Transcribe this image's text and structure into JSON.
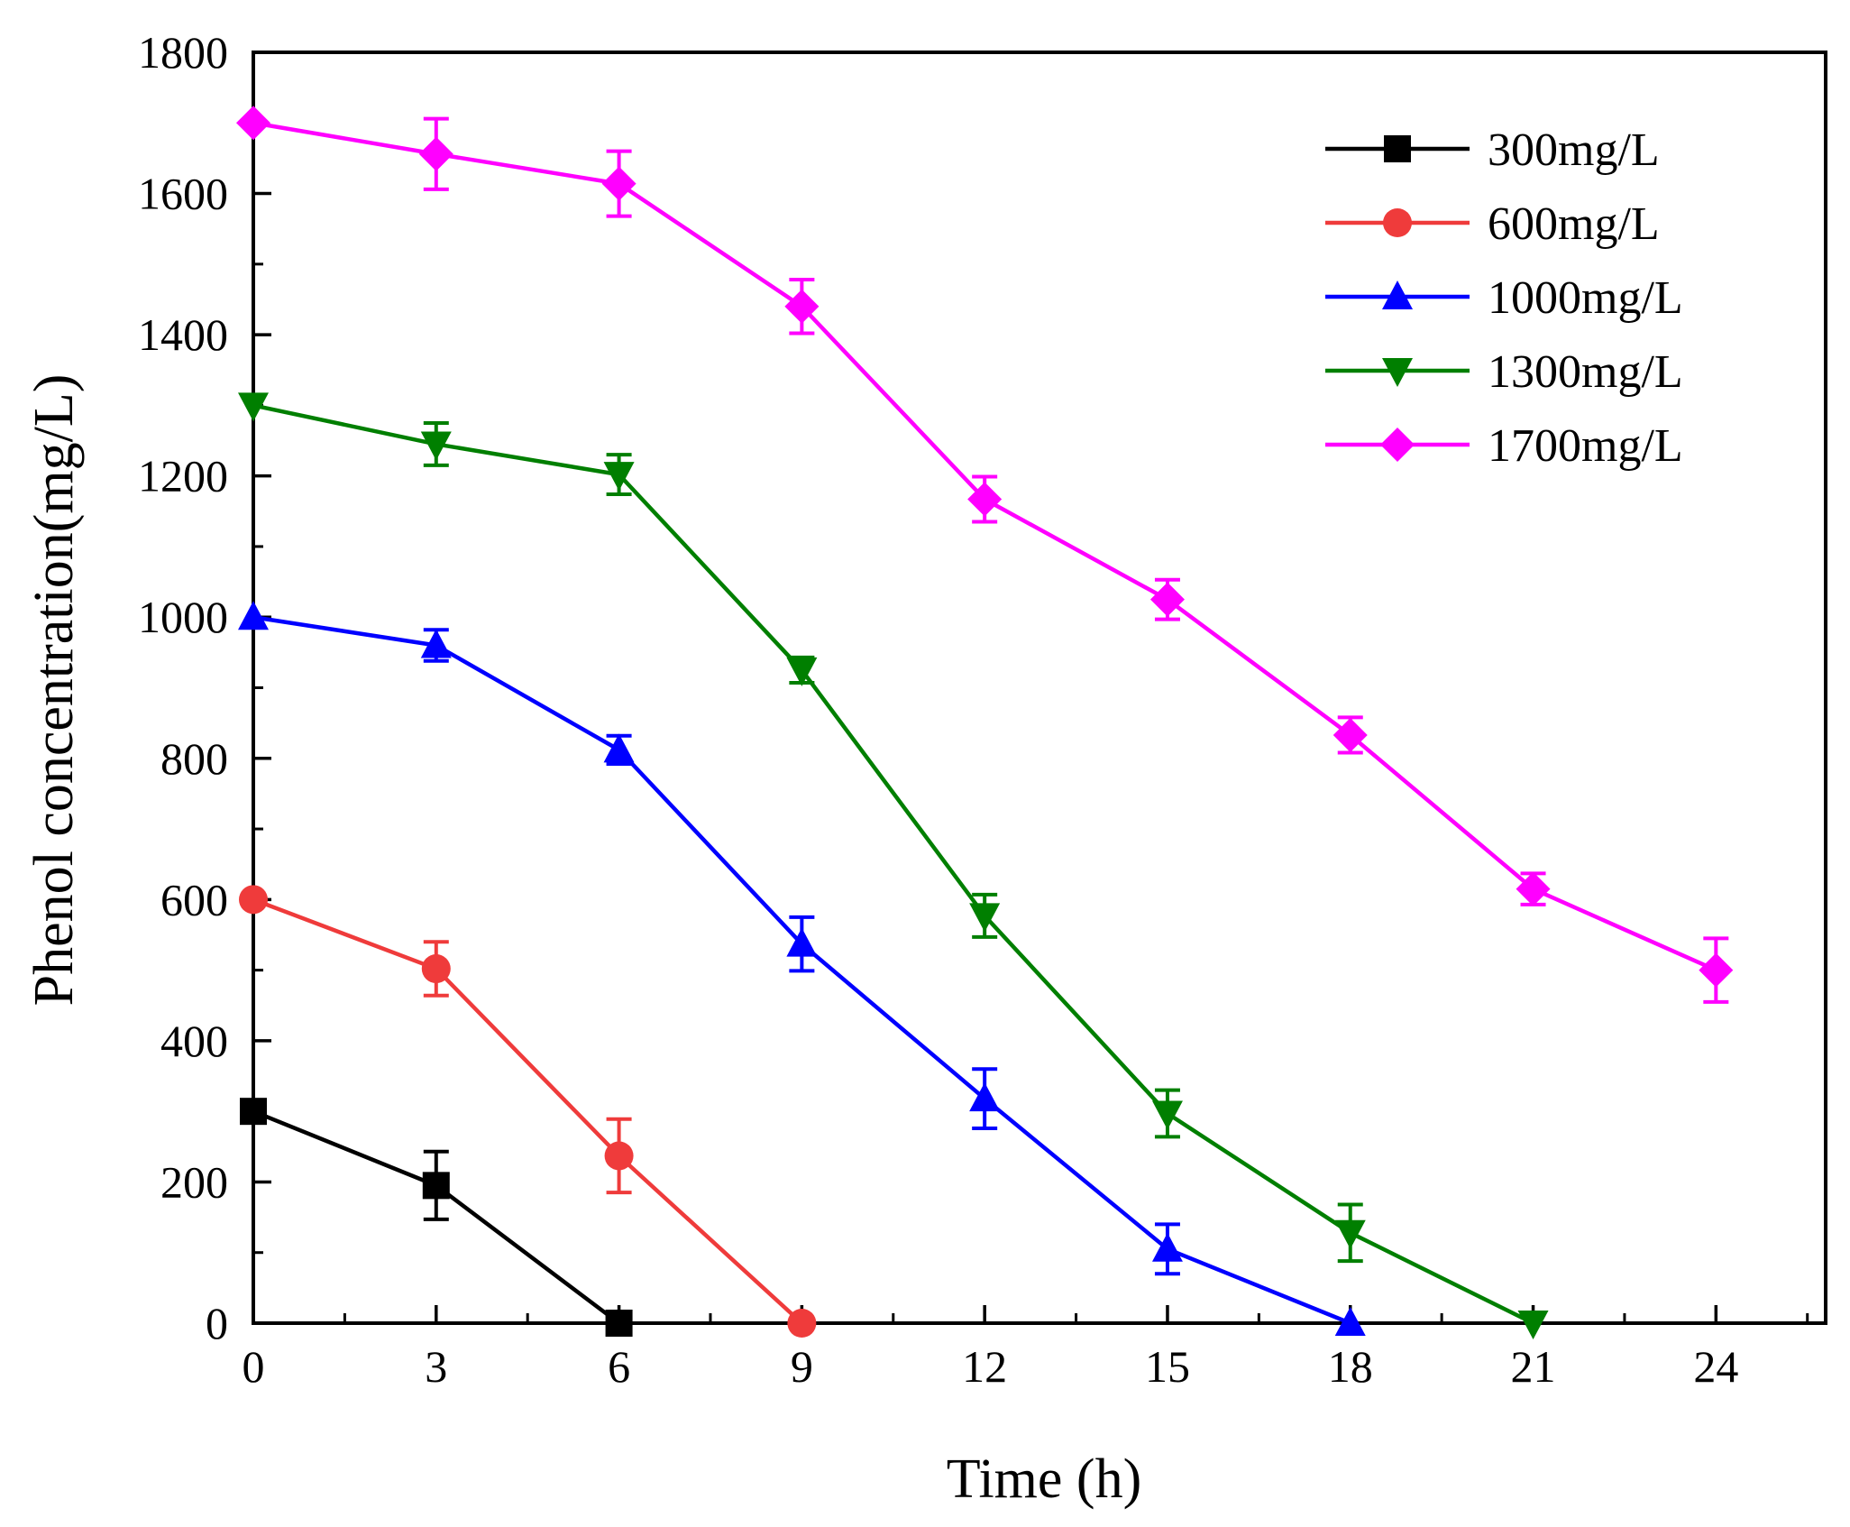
{
  "chart_data": {
    "type": "line",
    "title": "",
    "xlabel": "Time (h)",
    "ylabel": "Phenol concentration(mg/L)",
    "xlim": [
      0,
      25.8
    ],
    "ylim": [
      0,
      1800
    ],
    "xticks": [
      0,
      3,
      6,
      9,
      12,
      15,
      18,
      21,
      24
    ],
    "xtick_labels": [
      "0",
      "3",
      "6",
      "9",
      "12",
      "15",
      "18",
      "21",
      "24"
    ],
    "xminor_step": 1.5,
    "yticks": [
      0,
      200,
      400,
      600,
      800,
      1000,
      1200,
      1400,
      1600,
      1800
    ],
    "ytick_labels": [
      "0",
      "200",
      "400",
      "600",
      "800",
      "1000",
      "1200",
      "1400",
      "1600",
      "1800"
    ],
    "yminor_step": 100,
    "grid": false,
    "legend_position": "top-right",
    "series": [
      {
        "name": "300mg/L",
        "color": "#000000",
        "marker": "square",
        "x": [
          0,
          3,
          6
        ],
        "y": [
          300,
          195,
          0
        ],
        "err": [
          0,
          48,
          0
        ]
      },
      {
        "name": "600mg/L",
        "color": "#ef3b3b",
        "marker": "circle",
        "x": [
          0,
          3,
          6,
          9
        ],
        "y": [
          600,
          502,
          237,
          0
        ],
        "err": [
          0,
          38,
          52,
          0
        ]
      },
      {
        "name": "1000mg/L",
        "color": "#0000ff",
        "marker": "triangle-up",
        "x": [
          0,
          3,
          6,
          9,
          12,
          15,
          18
        ],
        "y": [
          1000,
          960,
          812,
          537,
          318,
          105,
          0
        ],
        "err": [
          0,
          22,
          20,
          38,
          42,
          35,
          0
        ]
      },
      {
        "name": "1300mg/L",
        "color": "#007f00",
        "marker": "triangle-down",
        "x": [
          0,
          3,
          6,
          9,
          12,
          15,
          18,
          21
        ],
        "y": [
          1300,
          1245,
          1202,
          925,
          577,
          297,
          128,
          0
        ],
        "err": [
          0,
          30,
          28,
          18,
          30,
          33,
          40,
          0
        ]
      },
      {
        "name": "1700mg/L",
        "color": "#ff00ff",
        "marker": "diamond",
        "x": [
          0,
          3,
          6,
          9,
          12,
          15,
          18,
          21,
          24
        ],
        "y": [
          1700,
          1656,
          1614,
          1440,
          1167,
          1025,
          833,
          615,
          500
        ],
        "err": [
          0,
          50,
          46,
          38,
          32,
          28,
          25,
          22,
          45
        ]
      }
    ]
  }
}
